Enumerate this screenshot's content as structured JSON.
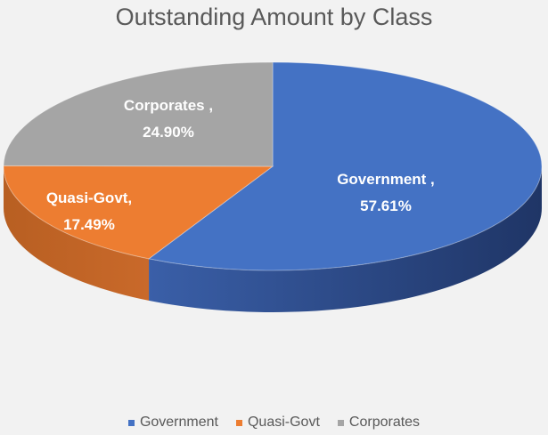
{
  "chart_data": {
    "type": "pie",
    "title": "Outstanding Amount by Class",
    "categories": [
      "Government",
      "Quasi-Govt",
      "Corporates"
    ],
    "values": [
      57.61,
      17.49,
      24.9
    ],
    "data_labels": [
      {
        "name": "Government ,",
        "value": "57.61%"
      },
      {
        "name": "Quasi-Govt,",
        "value": "17.49%"
      },
      {
        "name": "Corporates ,",
        "value": "24.90%"
      }
    ],
    "colors": [
      "#4472c4",
      "#ed7d31",
      "#a5a5a5"
    ],
    "side_colors": [
      "#2f4f8f",
      "#b85f22",
      "#7d7d7d"
    ],
    "style": "3d",
    "legend_position": "bottom"
  }
}
